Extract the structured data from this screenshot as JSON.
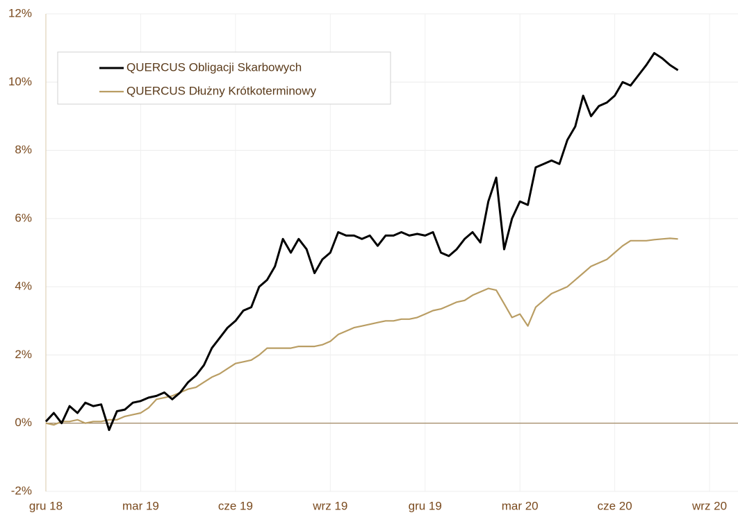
{
  "chart_data": {
    "type": "line",
    "x": [
      0,
      0.25,
      0.5,
      0.75,
      1,
      1.25,
      1.5,
      1.75,
      2,
      2.25,
      2.5,
      2.75,
      3,
      3.25,
      3.5,
      3.75,
      4,
      4.25,
      4.5,
      4.75,
      5,
      5.25,
      5.5,
      5.75,
      6,
      6.25,
      6.5,
      6.75,
      7,
      7.25,
      7.5,
      7.75,
      8,
      8.25,
      8.5,
      8.75,
      9,
      9.25,
      9.5,
      9.75,
      10,
      10.25,
      10.5,
      10.75,
      11,
      11.25,
      11.5,
      11.75,
      12,
      12.25,
      12.5,
      12.75,
      13,
      13.25,
      13.5,
      13.75,
      14,
      14.25,
      14.5,
      14.75,
      15,
      15.25,
      15.5,
      15.75,
      16,
      16.25,
      16.5,
      16.75,
      17,
      17.25,
      17.5,
      17.75,
      18,
      18.25,
      18.5,
      18.75,
      19,
      19.25,
      19.5,
      19.75,
      20
    ],
    "series": [
      {
        "name": "QUERCUS Obligacji Skarbowych",
        "color": "#000000",
        "values": [
          0.05,
          0.3,
          0.0,
          0.5,
          0.3,
          0.6,
          0.5,
          0.55,
          -0.2,
          0.35,
          0.4,
          0.6,
          0.65,
          0.75,
          0.8,
          0.9,
          0.7,
          0.9,
          1.2,
          1.4,
          1.7,
          2.2,
          2.5,
          2.8,
          3.0,
          3.3,
          3.4,
          4.0,
          4.2,
          4.6,
          5.4,
          5.0,
          5.4,
          5.1,
          4.4,
          4.8,
          5.0,
          5.6,
          5.5,
          5.5,
          5.4,
          5.5,
          5.2,
          5.5,
          5.5,
          5.6,
          5.5,
          5.55,
          5.5,
          5.6,
          5.0,
          4.9,
          5.1,
          5.4,
          5.6,
          5.3,
          6.5,
          7.2,
          5.1,
          6.0,
          6.5,
          6.4,
          7.5,
          7.6,
          7.7,
          7.6,
          8.3,
          8.7,
          9.6,
          9.0,
          9.3,
          9.4,
          9.6,
          10.0,
          9.9,
          10.2,
          10.5,
          10.85,
          10.7,
          10.5,
          10.35
        ]
      },
      {
        "name": "QUERCUS Dłużny Krótkoterminowy",
        "color": "#b99d63",
        "values": [
          0.0,
          -0.05,
          0.05,
          0.05,
          0.1,
          0.0,
          0.05,
          0.05,
          0.1,
          0.1,
          0.2,
          0.25,
          0.3,
          0.45,
          0.7,
          0.75,
          0.8,
          0.9,
          1.0,
          1.05,
          1.2,
          1.35,
          1.45,
          1.6,
          1.75,
          1.8,
          1.85,
          2.0,
          2.2,
          2.2,
          2.2,
          2.2,
          2.25,
          2.25,
          2.25,
          2.3,
          2.4,
          2.6,
          2.7,
          2.8,
          2.85,
          2.9,
          2.95,
          3.0,
          3.0,
          3.05,
          3.05,
          3.1,
          3.2,
          3.3,
          3.35,
          3.45,
          3.55,
          3.6,
          3.75,
          3.85,
          3.95,
          3.9,
          3.5,
          3.1,
          3.2,
          2.85,
          3.4,
          3.6,
          3.8,
          3.9,
          4.0,
          4.2,
          4.4,
          4.6,
          4.7,
          4.8,
          5.0,
          5.2,
          5.35,
          5.35,
          5.35,
          5.38,
          5.4,
          5.42,
          5.4
        ]
      }
    ],
    "xlim": [
      0,
      21.9
    ],
    "xticks": [
      {
        "value": 0,
        "label": "gru 18"
      },
      {
        "value": 3,
        "label": "mar 19"
      },
      {
        "value": 6,
        "label": "cze 19"
      },
      {
        "value": 9,
        "label": "wrz 19"
      },
      {
        "value": 12,
        "label": "gru 19"
      },
      {
        "value": 15,
        "label": "mar 20"
      },
      {
        "value": 18,
        "label": "cze 20"
      },
      {
        "value": 21,
        "label": "wrz 20"
      }
    ],
    "ylim": [
      -2,
      12
    ],
    "yticks": [
      {
        "value": -2,
        "label": "-2%"
      },
      {
        "value": 0,
        "label": "0%"
      },
      {
        "value": 2,
        "label": "2%"
      },
      {
        "value": 4,
        "label": "4%"
      },
      {
        "value": 6,
        "label": "6%"
      },
      {
        "value": 8,
        "label": "8%"
      },
      {
        "value": 10,
        "label": "10%"
      },
      {
        "value": 12,
        "label": "12%"
      }
    ],
    "grid": true,
    "legend": "upper left"
  }
}
